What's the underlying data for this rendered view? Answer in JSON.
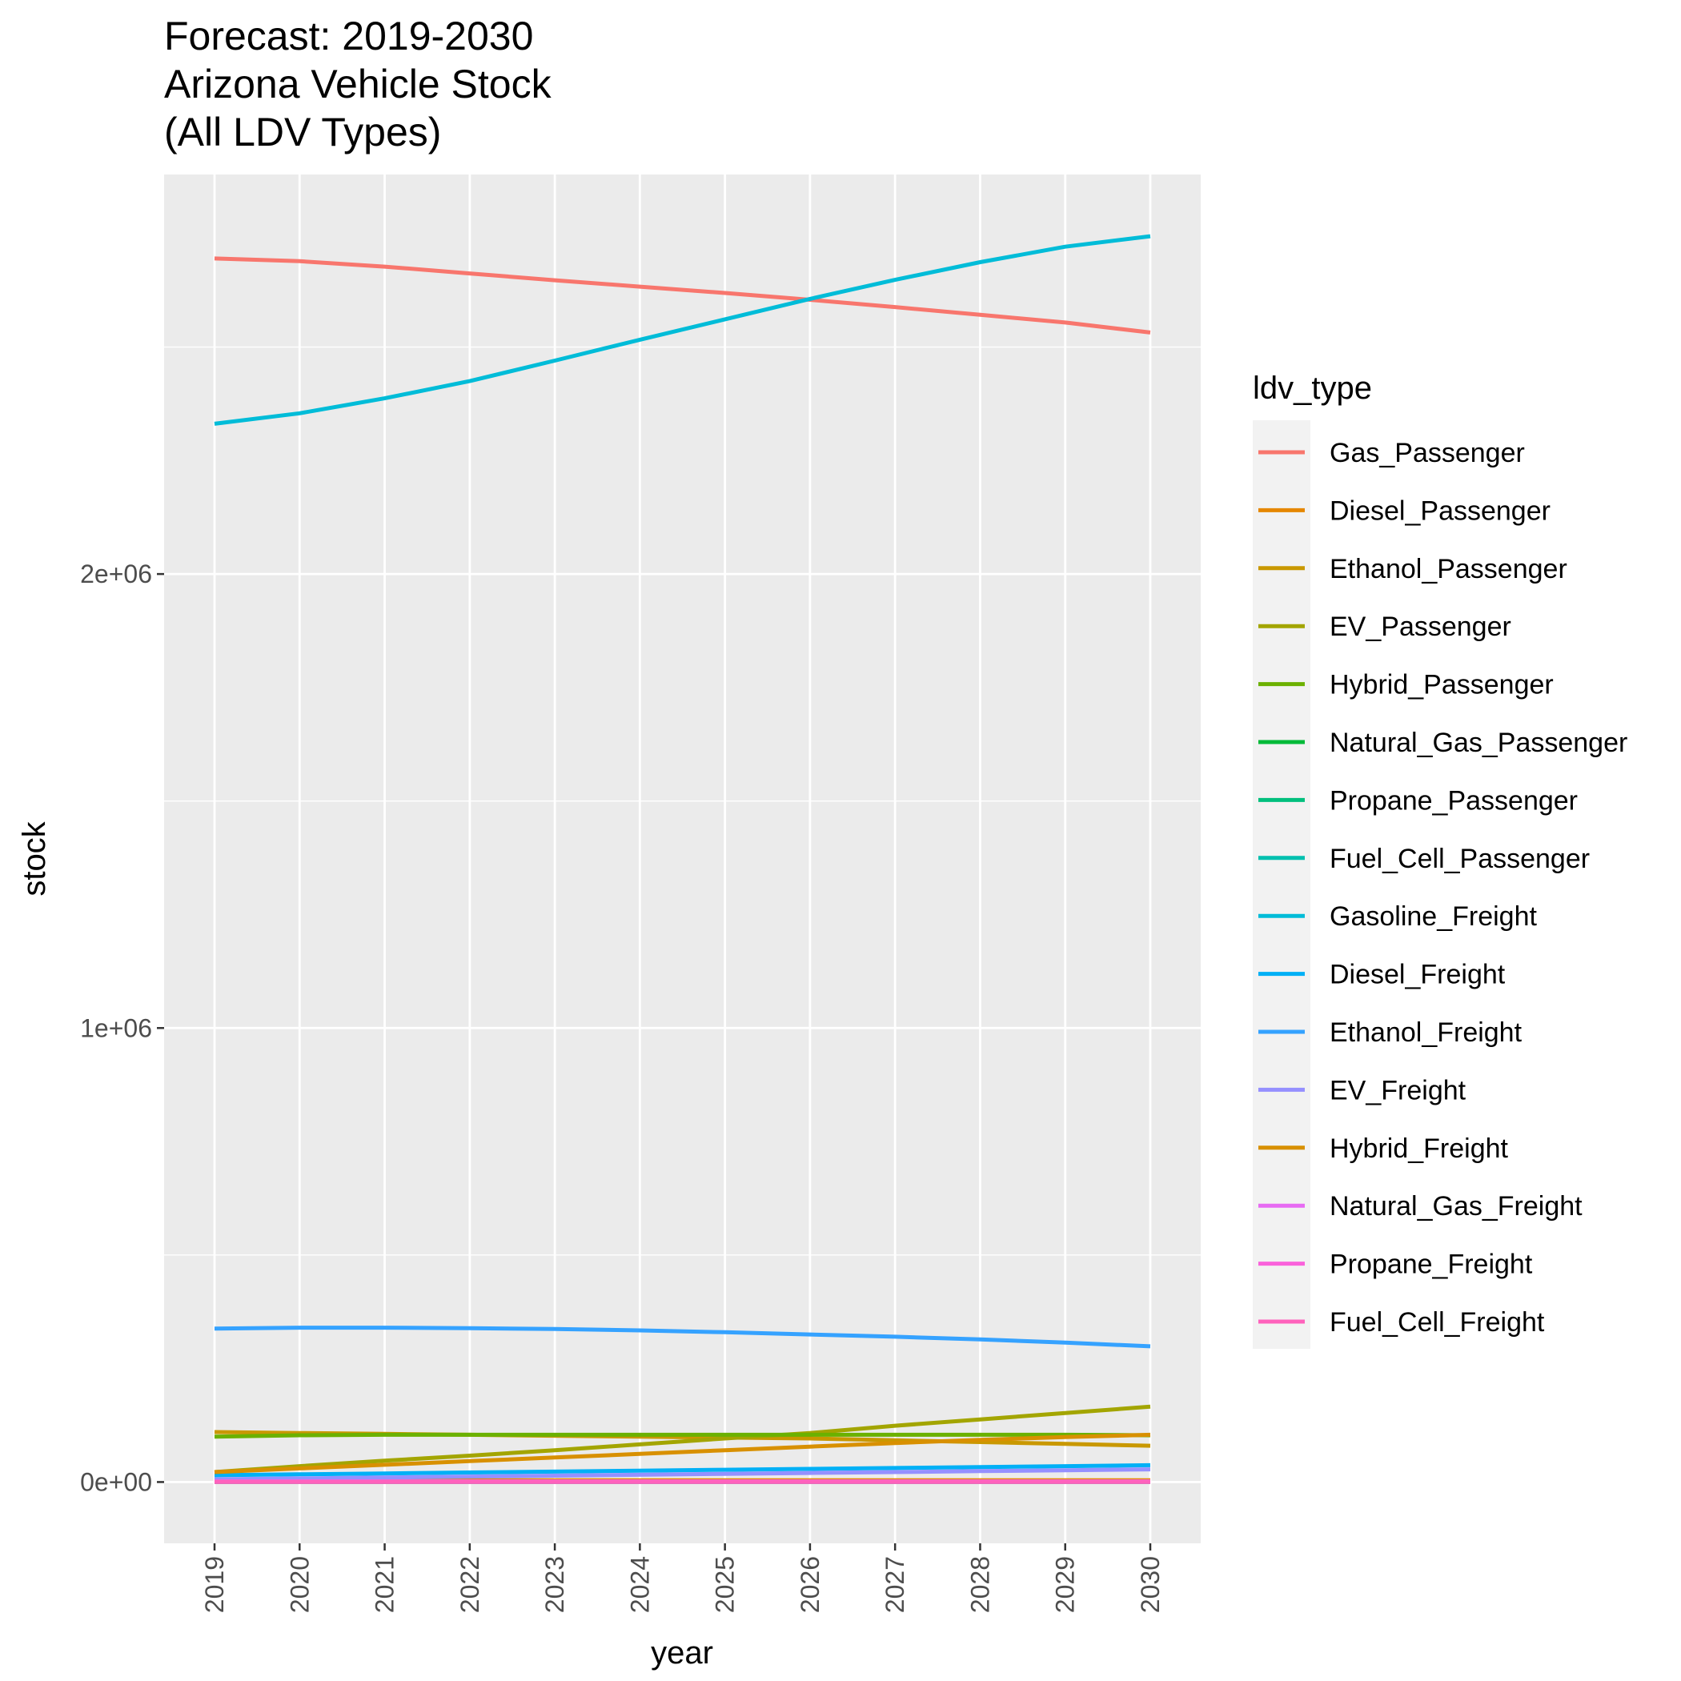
{
  "chart_data": {
    "type": "line",
    "title": [
      "Forecast: 2019-2030",
      "Arizona Vehicle Stock",
      "(All LDV Types)"
    ],
    "xlabel": "year",
    "ylabel": "stock",
    "x": [
      2019,
      2020,
      2021,
      2022,
      2023,
      2024,
      2025,
      2026,
      2027,
      2028,
      2029,
      2030
    ],
    "x_tick_labels": [
      "2019",
      "2020",
      "2021",
      "2022",
      "2023",
      "2024",
      "2025",
      "2026",
      "2027",
      "2028",
      "2029",
      "2030"
    ],
    "ylim": [
      -135000,
      2880000
    ],
    "y_ticks": [
      0,
      1000000,
      2000000
    ],
    "y_tick_labels": [
      "0e+00",
      "1e+06",
      "2e+06"
    ],
    "y_minor_ticks": [
      500000,
      1500000,
      2500000
    ],
    "grid": true,
    "legend_title": "ldv_type",
    "legend_position": "right",
    "series": [
      {
        "name": "Gas_Passenger",
        "color": "#F8766D",
        "values": [
          2695000,
          2689000,
          2677000,
          2662000,
          2647000,
          2633000,
          2619000,
          2604000,
          2588000,
          2571000,
          2554000,
          2532000
        ]
      },
      {
        "name": "Diesel_Passenger",
        "color": "#E58700",
        "values": [
          4000,
          4000,
          4000,
          4000,
          4000,
          4000,
          4000,
          4000,
          4000,
          4000,
          4000,
          4000
        ]
      },
      {
        "name": "Ethanol_Passenger",
        "color": "#C99800",
        "values": [
          110000,
          108000,
          106000,
          104000,
          102000,
          100000,
          98000,
          96000,
          92000,
          88000,
          84000,
          80000
        ]
      },
      {
        "name": "EV_Passenger",
        "color": "#A3A500",
        "values": [
          22000,
          35000,
          47000,
          58000,
          70000,
          83000,
          96000,
          108000,
          124000,
          138000,
          152000,
          166000
        ]
      },
      {
        "name": "Hybrid_Passenger",
        "color": "#6BB100",
        "values": [
          100000,
          103000,
          104000,
          104000,
          104000,
          104000,
          104000,
          104000,
          104000,
          104000,
          104000,
          103000
        ]
      },
      {
        "name": "Natural_Gas_Passenger",
        "color": "#00BA38",
        "values": [
          500,
          500,
          500,
          500,
          500,
          500,
          500,
          500,
          500,
          500,
          500,
          500
        ]
      },
      {
        "name": "Propane_Passenger",
        "color": "#00BF7D",
        "values": [
          300,
          300,
          300,
          300,
          300,
          300,
          300,
          300,
          300,
          300,
          300,
          300
        ]
      },
      {
        "name": "Fuel_Cell_Passenger",
        "color": "#00C0AF",
        "values": [
          100,
          100,
          100,
          100,
          100,
          100,
          100,
          100,
          100,
          100,
          100,
          100
        ]
      },
      {
        "name": "Gasoline_Freight",
        "color": "#00BCD8",
        "values": [
          2331000,
          2354000,
          2387000,
          2425000,
          2470000,
          2516000,
          2561000,
          2606000,
          2648000,
          2687000,
          2721000,
          2744000
        ]
      },
      {
        "name": "Diesel_Freight",
        "color": "#00B0F6",
        "values": [
          15000,
          17000,
          19000,
          21000,
          23000,
          25000,
          27000,
          29000,
          31000,
          33000,
          35000,
          37000
        ]
      },
      {
        "name": "Ethanol_Freight",
        "color": "#35A2FF",
        "values": [
          338000,
          340000,
          340000,
          339000,
          337000,
          334000,
          330000,
          325000,
          320000,
          314000,
          307000,
          299000
        ]
      },
      {
        "name": "EV_Freight",
        "color": "#9590FF",
        "values": [
          6000,
          8000,
          10000,
          12000,
          14000,
          16000,
          18000,
          20000,
          22000,
          24000,
          26000,
          28000
        ]
      },
      {
        "name": "Hybrid_Freight",
        "color": "#D89000",
        "values": [
          22000,
          30000,
          38000,
          46000,
          54000,
          62000,
          70000,
          78000,
          86000,
          93000,
          99000,
          104000
        ]
      },
      {
        "name": "Natural_Gas_Freight",
        "color": "#E76BF3",
        "values": [
          1500,
          1500,
          1500,
          1500,
          1500,
          1500,
          1500,
          1500,
          1500,
          1500,
          1500,
          1500
        ]
      },
      {
        "name": "Propane_Freight",
        "color": "#FA62DB",
        "values": [
          800,
          800,
          800,
          800,
          800,
          800,
          800,
          800,
          800,
          800,
          800,
          800
        ]
      },
      {
        "name": "Fuel_Cell_Freight",
        "color": "#FF62BC",
        "values": [
          0,
          0,
          0,
          0,
          0,
          0,
          0,
          0,
          0,
          0,
          0,
          0
        ]
      }
    ]
  }
}
